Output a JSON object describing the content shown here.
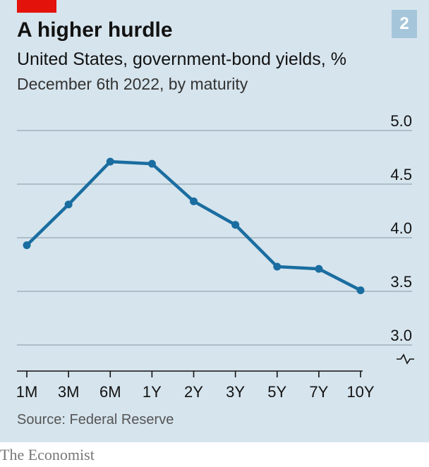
{
  "header": {
    "title": "A higher hurdle",
    "subtitle": "United States, government-bond yields, %",
    "subsubtitle": "December 6th 2022, by maturity",
    "badge": "2"
  },
  "footer": {
    "source": "Source: Federal Reserve",
    "brand": "The Economist"
  },
  "colors": {
    "background": "#d6e4ed",
    "line": "#1a6da0",
    "accent_red": "#e3120b",
    "badge": "#a5c6da"
  },
  "chart_data": {
    "type": "line",
    "title": "A higher hurdle",
    "subtitle": "United States, government-bond yields, %",
    "categories": [
      "1M",
      "3M",
      "6M",
      "1Y",
      "2Y",
      "3Y",
      "5Y",
      "7Y",
      "10Y"
    ],
    "series": [
      {
        "values": [
          3.93,
          4.31,
          4.71,
          4.69,
          4.34,
          4.12,
          3.73,
          3.71,
          3.51
        ]
      }
    ],
    "yticks": [
      "5.0",
      "4.5",
      "4.0",
      "3.5",
      "3.0"
    ],
    "ylim": [
      3.0,
      5.0
    ],
    "y_axis_broken": true,
    "grid": true,
    "ytick_position": "right"
  }
}
